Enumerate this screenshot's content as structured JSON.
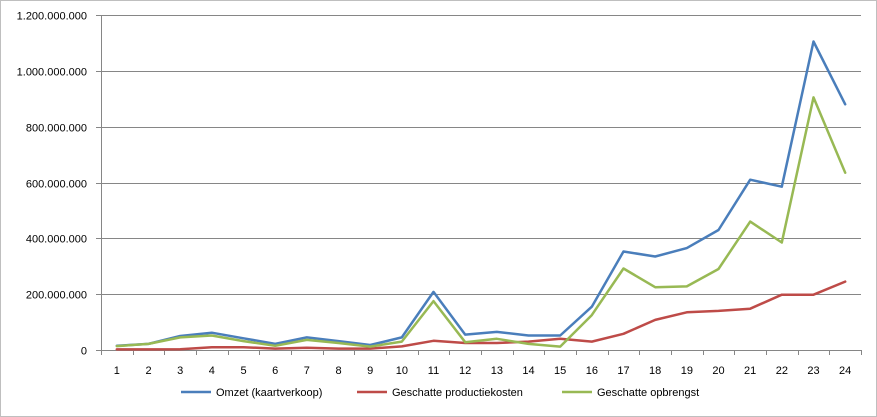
{
  "chart_data": {
    "type": "line",
    "title": "",
    "xlabel": "",
    "ylabel": "",
    "categories": [
      "1",
      "2",
      "3",
      "4",
      "5",
      "6",
      "7",
      "8",
      "9",
      "10",
      "11",
      "12",
      "13",
      "14",
      "15",
      "16",
      "17",
      "18",
      "19",
      "20",
      "21",
      "22",
      "23",
      "24"
    ],
    "ylim": [
      0,
      1200000000
    ],
    "yticks": [
      0,
      200000000,
      400000000,
      600000000,
      800000000,
      1000000000,
      1200000000
    ],
    "ytick_labels": [
      "0",
      "200.000.000",
      "400.000.000",
      "600.000.000",
      "800.000.000",
      "1.000.000.000",
      "1.200.000.000"
    ],
    "grid": true,
    "legend_position": "bottom",
    "series": [
      {
        "name": "Omzet (kaartverkoop)",
        "color": "#4a7ebb",
        "values": [
          15000000,
          22000000,
          50000000,
          62000000,
          42000000,
          22000000,
          45000000,
          32000000,
          18000000,
          45000000,
          208000000,
          55000000,
          65000000,
          52000000,
          52000000,
          155000000,
          353000000,
          335000000,
          365000000,
          430000000,
          610000000,
          585000000,
          1105000000,
          880000000
        ]
      },
      {
        "name": "Geschatte productiekosten",
        "color": "#be4b48",
        "values": [
          2000000,
          2000000,
          3000000,
          10000000,
          10000000,
          5000000,
          8000000,
          5000000,
          5000000,
          13000000,
          33000000,
          25000000,
          25000000,
          30000000,
          40000000,
          30000000,
          58000000,
          108000000,
          135000000,
          140000000,
          148000000,
          198000000,
          198000000,
          245000000
        ]
      },
      {
        "name": "Geschatte opbrengst",
        "color": "#98b954",
        "values": [
          14000000,
          22000000,
          45000000,
          52000000,
          32000000,
          15000000,
          36000000,
          25000000,
          12000000,
          30000000,
          175000000,
          28000000,
          40000000,
          22000000,
          12000000,
          125000000,
          292000000,
          225000000,
          228000000,
          290000000,
          460000000,
          385000000,
          905000000,
          635000000
        ]
      }
    ]
  }
}
